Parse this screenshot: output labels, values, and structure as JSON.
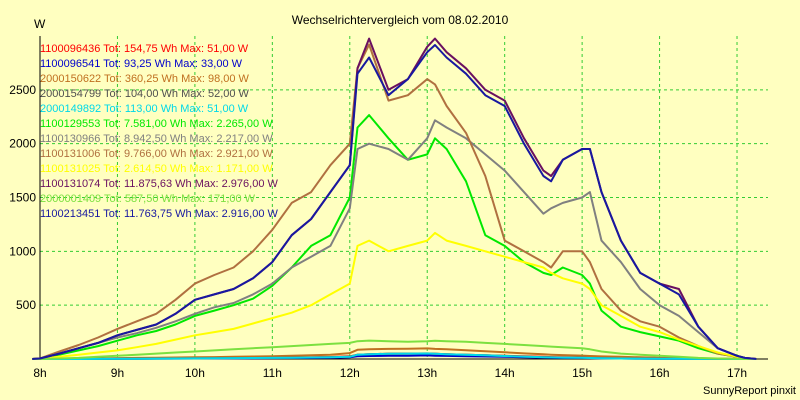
{
  "chart_data": {
    "type": "line",
    "title": "Wechselrichtervergleich vom 08.02.2010",
    "ylabel": "W",
    "footer": "SunnyReport pinxit",
    "ylim": [
      0,
      3000
    ],
    "xlim": [
      8,
      17.4
    ],
    "y_ticks": [
      500,
      1000,
      1500,
      2000,
      2500
    ],
    "x_ticks": [
      {
        "x": 8,
        "label": "8h"
      },
      {
        "x": 9,
        "label": "9h"
      },
      {
        "x": 10,
        "label": "10h"
      },
      {
        "x": 11,
        "label": "11h"
      },
      {
        "x": 12,
        "label": "12h"
      },
      {
        "x": 13,
        "label": "13h"
      },
      {
        "x": 14,
        "label": "14h"
      },
      {
        "x": 15,
        "label": "15h"
      },
      {
        "x": 16,
        "label": "16h"
      },
      {
        "x": 17,
        "label": "17h"
      }
    ],
    "grid": true,
    "legend_position": "top-left",
    "x": [
      7.9,
      8.0,
      8.25,
      8.5,
      8.75,
      9.0,
      9.25,
      9.5,
      9.75,
      10.0,
      10.25,
      10.5,
      10.75,
      11.0,
      11.25,
      11.5,
      11.75,
      12.0,
      12.1,
      12.25,
      12.5,
      12.75,
      13.0,
      13.1,
      13.25,
      13.5,
      13.75,
      14.0,
      14.25,
      14.5,
      14.6,
      14.75,
      15.0,
      15.1,
      15.25,
      15.5,
      15.75,
      16.0,
      16.25,
      16.5,
      16.75,
      17.0,
      17.1,
      17.25
    ],
    "series": [
      {
        "name": "1100096436 Tot: 154,75 Wh Max: 51,00 W",
        "color": "#FF0000",
        "values": [
          0,
          0,
          0,
          0,
          2,
          4,
          5,
          6,
          7,
          8,
          9,
          10,
          12,
          14,
          15,
          17,
          19,
          25,
          40,
          45,
          48,
          50,
          51,
          48,
          45,
          40,
          35,
          30,
          25,
          20,
          18,
          16,
          14,
          12,
          10,
          8,
          6,
          5,
          4,
          3,
          2,
          1,
          0,
          0
        ]
      },
      {
        "name": "1100096541 Tot: 93,25 Wh Max: 33,00 W",
        "color": "#0000CC",
        "values": [
          0,
          0,
          0,
          0,
          1,
          2,
          3,
          4,
          4,
          5,
          5,
          6,
          7,
          8,
          9,
          10,
          12,
          16,
          25,
          28,
          30,
          31,
          33,
          31,
          29,
          26,
          23,
          20,
          16,
          13,
          12,
          10,
          9,
          8,
          6,
          5,
          4,
          3,
          2,
          1,
          1,
          0,
          0,
          0
        ]
      },
      {
        "name": "2000150622 Tot: 360,25 Wh Max: 98,00 W",
        "color": "#C07020",
        "values": [
          0,
          0,
          0,
          2,
          5,
          8,
          10,
          12,
          14,
          16,
          18,
          20,
          23,
          26,
          30,
          35,
          40,
          55,
          85,
          90,
          94,
          96,
          98,
          94,
          90,
          82,
          72,
          62,
          52,
          44,
          40,
          36,
          32,
          28,
          24,
          20,
          16,
          12,
          9,
          6,
          4,
          2,
          0,
          0
        ]
      },
      {
        "name": "2000154799 Tot: 104,00 Wh Max: 52,00 W",
        "color": "#505050",
        "values": [
          0,
          0,
          0,
          0,
          1,
          2,
          3,
          4,
          5,
          6,
          7,
          8,
          9,
          10,
          12,
          14,
          16,
          20,
          40,
          45,
          48,
          50,
          52,
          49,
          45,
          40,
          34,
          28,
          22,
          17,
          15,
          13,
          11,
          9,
          7,
          5,
          4,
          3,
          2,
          1,
          1,
          0,
          0,
          0
        ]
      },
      {
        "name": "2000149892 Tot: 113,00 Wh Max: 51,00 W",
        "color": "#00D8E8",
        "values": [
          0,
          0,
          0,
          0,
          1,
          2,
          3,
          4,
          5,
          6,
          7,
          8,
          9,
          10,
          12,
          14,
          16,
          20,
          40,
          45,
          48,
          50,
          51,
          49,
          45,
          40,
          34,
          28,
          22,
          17,
          15,
          13,
          11,
          9,
          7,
          5,
          4,
          3,
          2,
          1,
          1,
          0,
          0,
          0
        ]
      },
      {
        "name": "1100129553 Tot: 7.581,00 Wh Max: 2.265,00 W",
        "color": "#00E800",
        "values": [
          0,
          5,
          40,
          80,
          120,
          170,
          220,
          260,
          320,
          400,
          450,
          500,
          560,
          680,
          850,
          1050,
          1150,
          1500,
          2150,
          2265,
          2050,
          1850,
          1900,
          2050,
          1950,
          1650,
          1150,
          1050,
          900,
          800,
          780,
          850,
          780,
          700,
          450,
          300,
          250,
          210,
          170,
          100,
          50,
          20,
          5,
          0
        ]
      },
      {
        "name": "1100130966 Tot: 8.942,50 Wh Max: 2.217,00 W",
        "color": "#808080",
        "values": [
          0,
          5,
          50,
          100,
          150,
          200,
          240,
          290,
          350,
          420,
          480,
          520,
          600,
          700,
          850,
          950,
          1050,
          1400,
          1950,
          2000,
          1950,
          1850,
          2050,
          2217,
          2150,
          2050,
          1900,
          1750,
          1550,
          1350,
          1400,
          1450,
          1500,
          1550,
          1100,
          900,
          650,
          500,
          400,
          250,
          100,
          30,
          10,
          0
        ]
      },
      {
        "name": "1100131006 Tot: 9.766,00 Wh Max: 2.921,00 W",
        "color": "#B07040",
        "values": [
          0,
          5,
          70,
          130,
          200,
          280,
          350,
          420,
          550,
          700,
          780,
          850,
          1000,
          1200,
          1450,
          1550,
          1800,
          2000,
          2700,
          2921,
          2400,
          2450,
          2600,
          2550,
          2350,
          2100,
          1700,
          1100,
          1000,
          900,
          850,
          1000,
          1000,
          900,
          650,
          450,
          350,
          300,
          200,
          120,
          50,
          20,
          5,
          0
        ]
      },
      {
        "name": "1100131025 Tot: 2.614,50 Wh Max: 1.171,00 W",
        "color": "#FFFF00",
        "values": [
          0,
          2,
          20,
          40,
          60,
          80,
          110,
          140,
          180,
          220,
          250,
          280,
          330,
          380,
          430,
          500,
          600,
          700,
          1050,
          1100,
          1000,
          1050,
          1100,
          1171,
          1100,
          1050,
          1000,
          950,
          900,
          850,
          800,
          750,
          700,
          650,
          500,
          400,
          300,
          250,
          180,
          120,
          60,
          20,
          5,
          0
        ]
      },
      {
        "name": "1100131074 Tot: 11.875,63 Wh Max: 2.976,00 W",
        "color": "#6A1060",
        "values": [
          0,
          5,
          50,
          100,
          150,
          220,
          270,
          320,
          420,
          550,
          600,
          650,
          750,
          900,
          1150,
          1300,
          1550,
          1800,
          2700,
          2976,
          2500,
          2600,
          2900,
          2976,
          2850,
          2700,
          2500,
          2400,
          2050,
          1750,
          1700,
          1850,
          1950,
          1950,
          1550,
          1100,
          800,
          700,
          650,
          300,
          100,
          30,
          10,
          0
        ]
      },
      {
        "name": "2000001409 Tot: 587,50 Wh Max: 171,00 W",
        "color": "#7CE040",
        "values": [
          0,
          0,
          5,
          10,
          20,
          30,
          40,
          50,
          60,
          70,
          80,
          90,
          100,
          110,
          120,
          130,
          140,
          150,
          165,
          171,
          165,
          160,
          165,
          170,
          165,
          160,
          150,
          140,
          130,
          120,
          115,
          110,
          100,
          90,
          70,
          50,
          40,
          30,
          20,
          10,
          5,
          2,
          0,
          0
        ]
      },
      {
        "name": "1100213451 Tot: 11.763,75 Wh Max: 2.916,00 W",
        "color": "#1818A0",
        "values": [
          0,
          5,
          50,
          100,
          150,
          220,
          270,
          320,
          420,
          550,
          600,
          650,
          750,
          900,
          1150,
          1300,
          1550,
          1800,
          2650,
          2800,
          2450,
          2600,
          2850,
          2916,
          2800,
          2650,
          2450,
          2350,
          2000,
          1700,
          1650,
          1850,
          1950,
          1950,
          1550,
          1100,
          800,
          700,
          600,
          300,
          100,
          30,
          10,
          0
        ]
      }
    ]
  }
}
